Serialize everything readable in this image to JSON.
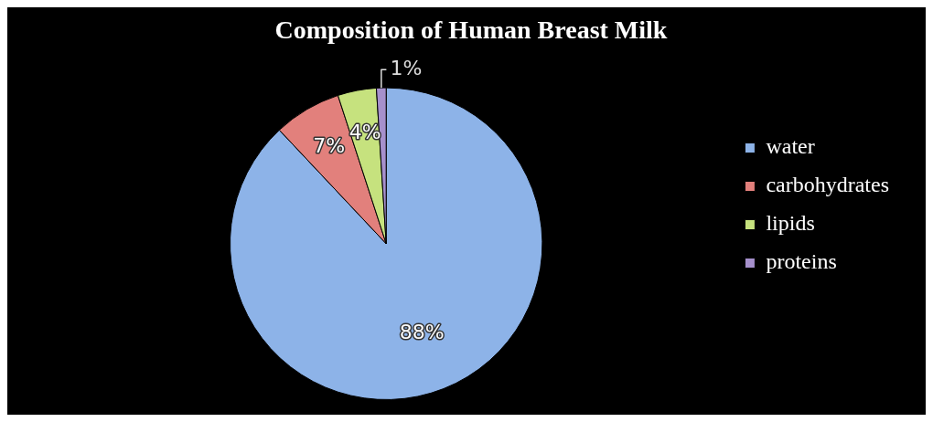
{
  "chart_data": {
    "type": "pie",
    "title": "Composition of Human Breast Milk",
    "categories": [
      "water",
      "carbohydrates",
      "lipids",
      "proteins"
    ],
    "values": [
      88,
      7,
      4,
      1
    ],
    "colors": [
      "#8db3e8",
      "#e2807c",
      "#c6e27e",
      "#a690cc"
    ],
    "value_labels": [
      "88%",
      "7%",
      "4%",
      "1%"
    ],
    "legend": "right"
  }
}
